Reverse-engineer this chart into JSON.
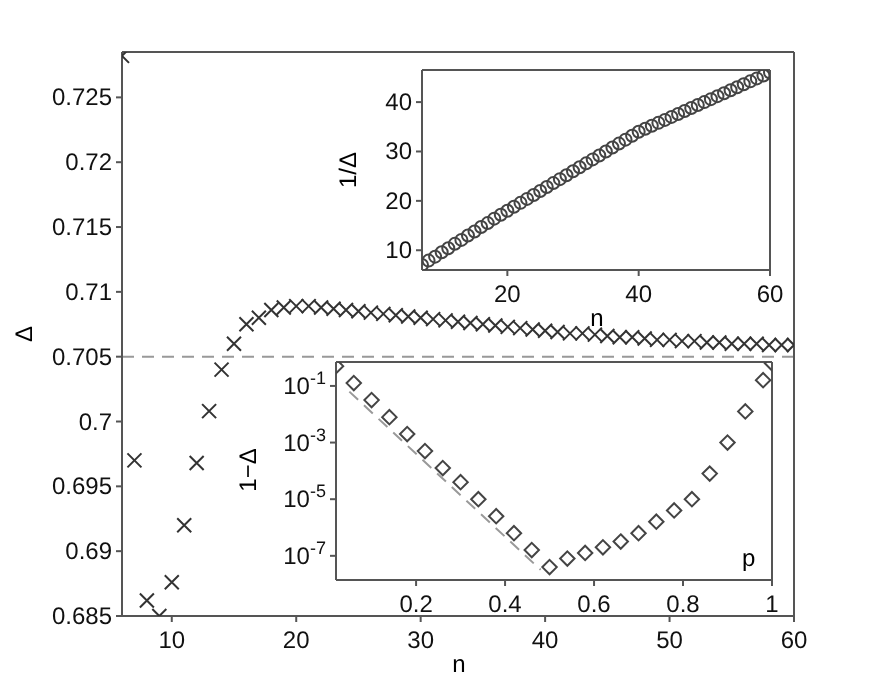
{
  "chart_data": [
    {
      "type": "scatter",
      "xlabel": "n",
      "ylabel": "Δ",
      "marker": "cross",
      "grid": false,
      "color": "#333333",
      "x": [
        6,
        7,
        8,
        9,
        10,
        11,
        12,
        13,
        14,
        15,
        16,
        17,
        18,
        19,
        20,
        21,
        22,
        23,
        24,
        25,
        26,
        27,
        28,
        29,
        30,
        31,
        32,
        33,
        34,
        35,
        36,
        37,
        38,
        39,
        40,
        41,
        42,
        43,
        44,
        45,
        46,
        47,
        48,
        49,
        50,
        51,
        52,
        53,
        54,
        55,
        56,
        57,
        58,
        59,
        60
      ],
      "values": [
        0.7282,
        0.697,
        0.6862,
        0.685,
        0.6876,
        0.692,
        0.6968,
        0.7008,
        0.704,
        0.706,
        0.7075,
        0.708,
        0.7086,
        0.7088,
        0.7089,
        0.7089,
        0.7088,
        0.7087,
        0.7086,
        0.7085,
        0.7084,
        0.7083,
        0.7082,
        0.7081,
        0.708,
        0.7079,
        0.7078,
        0.7077,
        0.7076,
        0.7075,
        0.7074,
        0.7073,
        0.7072,
        0.7071,
        0.707,
        0.7069,
        0.7068,
        0.7068,
        0.7067,
        0.7066,
        0.7065,
        0.7065,
        0.7064,
        0.7063,
        0.7063,
        0.7062,
        0.7062,
        0.7061,
        0.7061,
        0.706,
        0.706,
        0.706,
        0.7059,
        0.7059,
        0.7059
      ],
      "xlim": [
        6,
        60
      ],
      "xticks": [
        10,
        20,
        30,
        40,
        50,
        60
      ],
      "ylim": [
        0.685,
        0.7285
      ],
      "yticks": [
        0.685,
        0.69,
        0.695,
        0.7,
        0.705,
        0.71,
        0.715,
        0.72,
        0.725
      ],
      "ref_lines": [
        {
          "axis": "y",
          "value": 0.705,
          "color": "#999999",
          "line_style": "dashed"
        }
      ]
    },
    {
      "type": "scatter",
      "xlabel": "n",
      "ylabel": "1/Δ",
      "marker": "circle",
      "grid": false,
      "color": "#444444",
      "x": [
        7,
        8,
        9,
        10,
        11,
        12,
        13,
        14,
        15,
        16,
        17,
        18,
        19,
        20,
        21,
        22,
        23,
        24,
        25,
        26,
        27,
        28,
        29,
        30,
        31,
        32,
        33,
        34,
        35,
        36,
        37,
        38,
        39,
        40,
        41,
        42,
        43,
        44,
        45,
        46,
        47,
        48,
        49,
        50,
        51,
        52,
        53,
        54,
        55,
        56,
        57,
        58,
        59,
        60
      ],
      "values": [
        7,
        7.9,
        8.7,
        9.6,
        10.4,
        11.3,
        12.1,
        13,
        13.8,
        14.7,
        15.5,
        16.4,
        17.2,
        18,
        18.8,
        19.6,
        20.4,
        21.2,
        22,
        22.8,
        23.6,
        24.4,
        25.2,
        26,
        26.8,
        27.6,
        28.4,
        29.2,
        30,
        30.8,
        31.6,
        32.4,
        33.2,
        34,
        34.6,
        35.2,
        35.8,
        36.4,
        37,
        37.6,
        38.2,
        38.8,
        39.4,
        40,
        40.6,
        41.2,
        41.8,
        42.4,
        43,
        43.6,
        44.2,
        44.8,
        45.4,
        46
      ],
      "xlim": [
        7,
        60
      ],
      "xticks": [
        20,
        40,
        60
      ],
      "ylim": [
        6,
        46.5
      ],
      "yticks": [
        10,
        20,
        30,
        40
      ]
    },
    {
      "type": "scatter",
      "xlabel": "p",
      "ylabel": "1−Δ",
      "log": "y",
      "grid": false,
      "series": [
        {
          "type": "scatter",
          "marker": "diamond",
          "color": "#444444",
          "x": [
            0.02,
            0.06,
            0.1,
            0.14,
            0.18,
            0.22,
            0.26,
            0.3,
            0.34,
            0.38,
            0.42,
            0.46,
            0.5,
            0.54,
            0.58,
            0.62,
            0.66,
            0.7,
            0.74,
            0.78,
            0.82,
            0.86,
            0.9,
            0.94,
            0.98,
            1
          ],
          "values": [
            0.5,
            0.126,
            0.0316,
            0.0079,
            0.002,
            0.0005,
            0.000126,
            4e-05,
            1e-05,
            2.5e-06,
            6.3e-07,
            1.6e-07,
            4e-08,
            8e-08,
            1.26e-07,
            2e-07,
            3.2e-07,
            6.3e-07,
            1.6e-06,
            4e-06,
            1e-05,
            8e-05,
            0.001,
            0.0126,
            0.16,
            0.63
          ]
        },
        {
          "type": "line",
          "line_style": "dashed",
          "color": "#999999",
          "x": [
            0.05,
            0.48
          ],
          "values": [
            0.063,
            3.2e-08
          ]
        }
      ],
      "xlim": [
        0.02,
        1
      ],
      "xticks": [
        0.2,
        0.4,
        0.6,
        0.8,
        1
      ],
      "ylim": [
        1.4e-08,
        0.7
      ],
      "yticks": [
        {
          "value": 0.1,
          "label": "10$^{-1}$"
        },
        {
          "value": 0.001,
          "label": "10$^{-3}$"
        },
        {
          "value": 1e-05,
          "label": "10$^{-5}$"
        },
        {
          "value": 1e-07,
          "label": "10$^{-7}$"
        }
      ]
    }
  ]
}
